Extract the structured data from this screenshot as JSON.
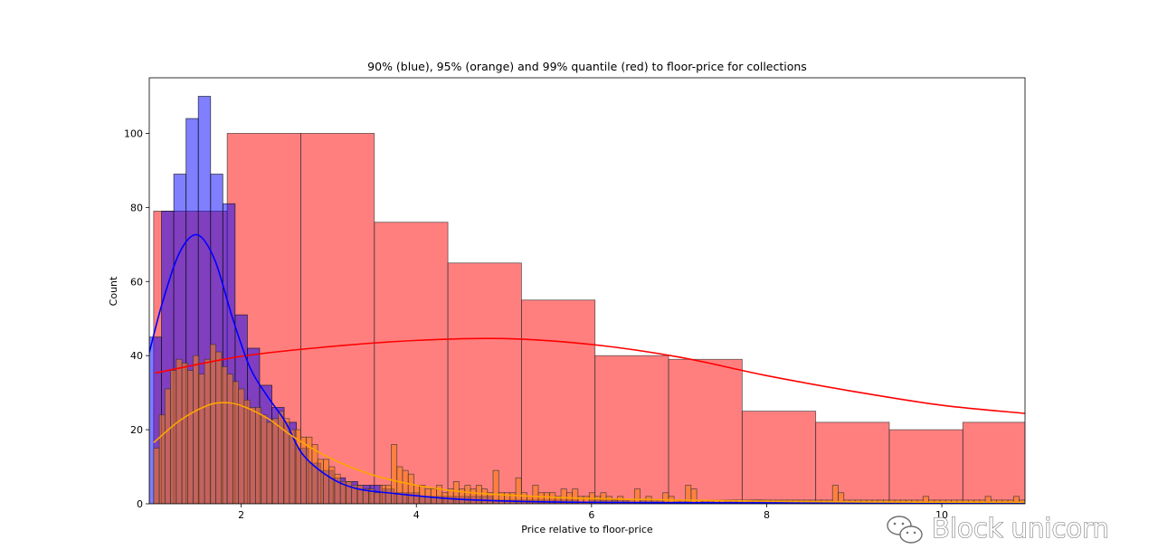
{
  "chart_data": {
    "type": "bar",
    "title": "90% (blue), 95% (orange) and 99% quantile (red) to floor-price for collections",
    "xlabel": "Price relative to floor-price",
    "ylabel": "Count",
    "xlim": [
      0.95,
      10.95
    ],
    "ylim": [
      0,
      115
    ],
    "x_ticks": [
      2,
      4,
      6,
      8,
      10
    ],
    "y_ticks": [
      0,
      20,
      40,
      60,
      80,
      100
    ],
    "grid": false,
    "series": [
      {
        "color": "#ff0000",
        "bin_edges": [
          1.0,
          1.84,
          2.68,
          3.52,
          4.36,
          5.2,
          6.04,
          6.88,
          7.72,
          8.56,
          9.4,
          10.24,
          11.08
        ],
        "values": [
          79,
          100,
          100,
          76,
          65,
          55,
          40,
          39,
          25,
          22,
          20,
          22
        ],
        "kde_points": [
          [
            1.02,
            35.3
          ],
          [
            2.0,
            39.8
          ],
          [
            3.0,
            42.4
          ],
          [
            4.0,
            44.1
          ],
          [
            5.0,
            44.6
          ],
          [
            6.0,
            43.0
          ],
          [
            7.0,
            39.6
          ],
          [
            8.0,
            34.6
          ],
          [
            9.0,
            30.3
          ],
          [
            10.0,
            26.6
          ],
          [
            10.95,
            24.4
          ]
        ]
      },
      {
        "color": "#0000ff",
        "bin_start": 0.95,
        "bin_width": 0.14,
        "values": [
          45,
          79,
          89,
          104,
          110,
          89,
          81,
          51,
          42,
          32,
          26,
          22,
          15,
          11,
          9,
          7,
          6,
          5,
          5,
          4,
          3,
          3,
          2,
          2,
          2,
          2,
          2,
          2,
          1,
          1,
          1,
          1,
          1,
          1,
          1,
          0,
          1,
          1,
          1,
          0,
          1,
          1,
          0,
          1,
          0,
          1,
          0,
          1,
          0,
          1
        ],
        "kde_points": [
          [
            0.95,
            40.8
          ],
          [
            1.1,
            54.3
          ],
          [
            1.3,
            68.0
          ],
          [
            1.5,
            72.6
          ],
          [
            1.7,
            65.7
          ],
          [
            1.9,
            50.2
          ],
          [
            2.1,
            36.8
          ],
          [
            2.3,
            29.0
          ],
          [
            2.5,
            22.3
          ],
          [
            2.7,
            13.4
          ],
          [
            3.0,
            7.3
          ],
          [
            3.3,
            4.2
          ],
          [
            3.7,
            2.9
          ],
          [
            4.5,
            1.2
          ],
          [
            5.5,
            0.5
          ],
          [
            7.0,
            0.3
          ],
          [
            10.95,
            0.1
          ]
        ]
      },
      {
        "color": "#ff7f0e",
        "bin_start": 1.0,
        "bin_width": 0.0646,
        "values": [
          15,
          24,
          31,
          36,
          39,
          38,
          36,
          40,
          35,
          39,
          43,
          41,
          37,
          35,
          33,
          31,
          28,
          26,
          26,
          24,
          22,
          23,
          25,
          23,
          20,
          20,
          18,
          18,
          16,
          12,
          12,
          10,
          8,
          6,
          6,
          5,
          5,
          4,
          4,
          3,
          5,
          5,
          16,
          10,
          9,
          8,
          5,
          5,
          4,
          4,
          5,
          3,
          4,
          6,
          4,
          5,
          4,
          5,
          4,
          3,
          9,
          3,
          3,
          3,
          7,
          3,
          2,
          5,
          3,
          3,
          3,
          2,
          4,
          3,
          4,
          2,
          2,
          3,
          2,
          3,
          2,
          1,
          2,
          1,
          1,
          4,
          1,
          2,
          1,
          1,
          3,
          2,
          1,
          1,
          5,
          4,
          1,
          1,
          1,
          1,
          1,
          1,
          1,
          1,
          1,
          1,
          1,
          1,
          1,
          1,
          1,
          1,
          1,
          1,
          1,
          1,
          1,
          1,
          1,
          1,
          5,
          3,
          1,
          1,
          1,
          1,
          1,
          1,
          1,
          1,
          1,
          1,
          1,
          1,
          1,
          1,
          2,
          1,
          1,
          1,
          1,
          1,
          1,
          1,
          1,
          1,
          1,
          2,
          1,
          1,
          1,
          1,
          2,
          1,
          1
        ],
        "kde_points": [
          [
            1.0,
            16.5
          ],
          [
            1.3,
            22.5
          ],
          [
            1.6,
            26.4
          ],
          [
            1.8,
            27.3
          ],
          [
            2.0,
            26.5
          ],
          [
            2.3,
            23.1
          ],
          [
            2.6,
            18.0
          ],
          [
            3.0,
            12.5
          ],
          [
            3.5,
            7.8
          ],
          [
            4.0,
            5.0
          ],
          [
            4.5,
            3.3
          ],
          [
            5.0,
            2.4
          ],
          [
            6.0,
            1.4
          ],
          [
            7.0,
            1.0
          ],
          [
            8.0,
            0.7
          ],
          [
            9.0,
            0.5
          ],
          [
            10.95,
            0.4
          ]
        ]
      }
    ]
  },
  "watermark": {
    "text": "Block unicorn",
    "icon": "wechat-icon"
  }
}
